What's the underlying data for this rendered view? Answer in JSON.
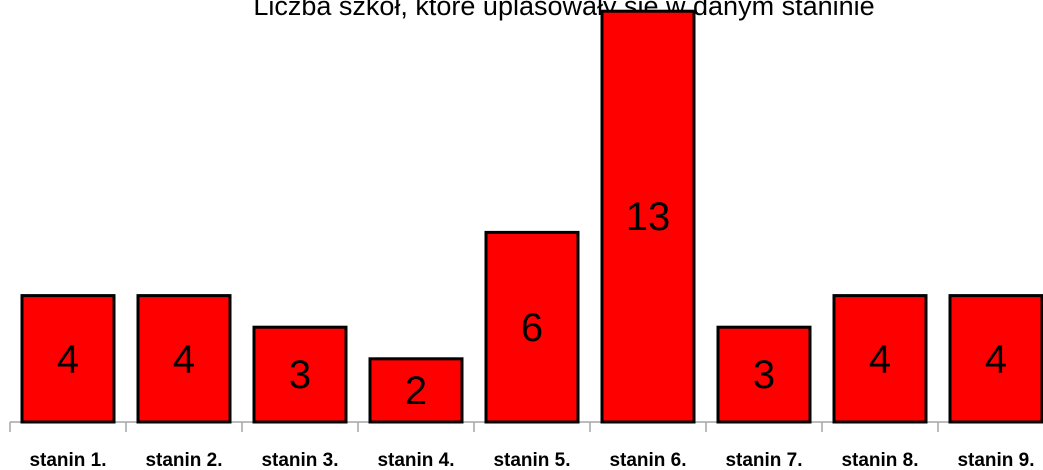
{
  "chart_data": {
    "type": "bar",
    "title": "Liczba szkół, które uplasowały się w danym staninie",
    "categories": [
      "stanin 1.",
      "stanin 2.",
      "stanin 3.",
      "stanin 4.",
      "stanin 5.",
      "stanin 6.",
      "stanin 7.",
      "stanin 8.",
      "stanin 9."
    ],
    "values": [
      4,
      4,
      3,
      2,
      6,
      13,
      3,
      4,
      4
    ],
    "color": "#ff0000"
  }
}
